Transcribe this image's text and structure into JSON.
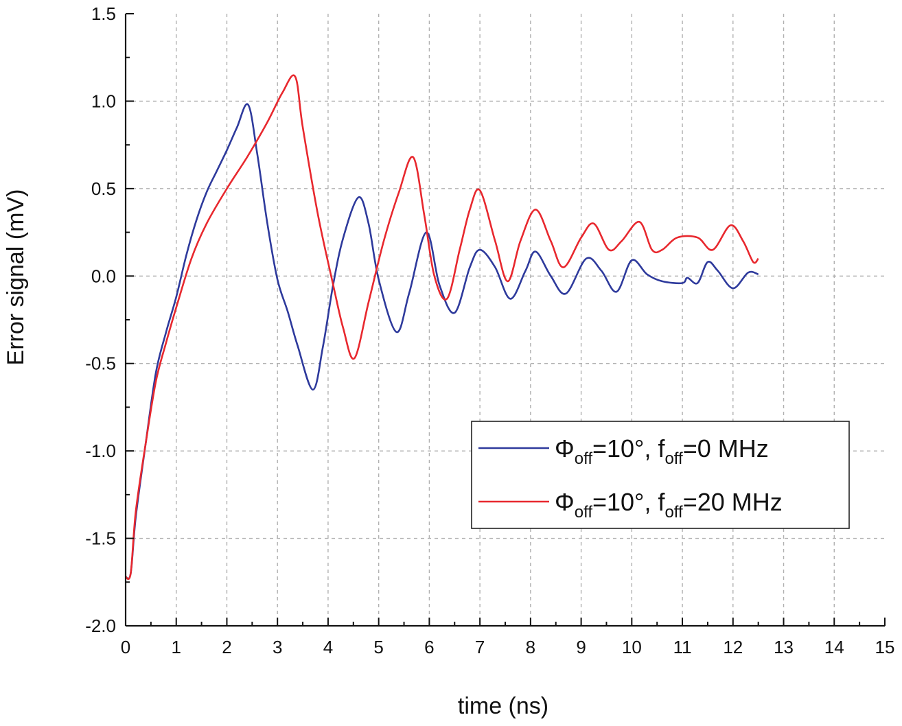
{
  "chart_data": {
    "type": "line",
    "title": "",
    "xlabel": "time (ns)",
    "ylabel": "Error signal (mV)",
    "xlim": [
      0,
      15
    ],
    "ylim": [
      -2.0,
      1.5
    ],
    "grid": true,
    "legend_position": "right-middle",
    "x_ticks": [
      "0",
      "1",
      "2",
      "3",
      "4",
      "5",
      "6",
      "7",
      "8",
      "9",
      "10",
      "11",
      "12",
      "13",
      "14",
      "15"
    ],
    "y_ticks": [
      "-2.0",
      "-1.5",
      "-1.0",
      "-0.5",
      "0.0",
      "0.5",
      "1.0",
      "1.5"
    ],
    "series": [
      {
        "name": "Φoff=10°, foff=0 MHz",
        "legend": {
          "symbol": "Φ",
          "sub1": "off",
          "mid": "=10°, f",
          "sub2": "off",
          "tail": "=0 MHz"
        },
        "color": "#2e3a9c",
        "x": [
          0,
          0.1,
          0.2,
          0.4,
          0.6,
          0.8,
          1.0,
          1.2,
          1.4,
          1.6,
          1.8,
          2.0,
          2.2,
          2.42,
          2.6,
          2.8,
          3.0,
          3.2,
          3.4,
          3.7,
          3.9,
          4.1,
          4.3,
          4.6,
          4.8,
          5.0,
          5.35,
          5.6,
          5.94,
          6.2,
          6.5,
          6.8,
          7.0,
          7.3,
          7.6,
          7.9,
          8.1,
          8.4,
          8.7,
          9.1,
          9.4,
          9.7,
          10.0,
          10.3,
          10.6,
          11.0,
          11.1,
          11.3,
          11.5,
          11.7,
          12.0,
          12.3,
          12.5
        ],
        "y": [
          -1.72,
          -1.7,
          -1.38,
          -0.95,
          -0.55,
          -0.32,
          -0.12,
          0.12,
          0.32,
          0.48,
          0.6,
          0.72,
          0.85,
          0.98,
          0.7,
          0.3,
          -0.02,
          -0.2,
          -0.4,
          -0.65,
          -0.4,
          -0.05,
          0.22,
          0.45,
          0.3,
          -0.02,
          -0.32,
          -0.1,
          0.25,
          -0.05,
          -0.21,
          0.05,
          0.15,
          0.05,
          -0.13,
          0.03,
          0.14,
          0.0,
          -0.1,
          0.1,
          0.03,
          -0.09,
          0.09,
          0.01,
          -0.03,
          -0.04,
          -0.01,
          -0.04,
          0.08,
          0.03,
          -0.07,
          0.02,
          0.01
        ]
      },
      {
        "name": "Φoff=10°, foff=20 MHz",
        "legend": {
          "symbol": "Φ",
          "sub1": "off",
          "mid": "=10°, f",
          "sub2": "off",
          "tail": "=20 MHz"
        },
        "color": "#e8282e",
        "x": [
          0,
          0.1,
          0.2,
          0.4,
          0.6,
          0.8,
          1.0,
          1.3,
          1.6,
          2.0,
          2.4,
          2.8,
          3.1,
          3.35,
          3.5,
          3.8,
          4.1,
          4.3,
          4.52,
          4.8,
          5.1,
          5.4,
          5.68,
          5.9,
          6.1,
          6.35,
          6.6,
          6.8,
          7.0,
          7.3,
          7.55,
          7.8,
          8.1,
          8.4,
          8.65,
          9.0,
          9.25,
          9.55,
          9.8,
          10.15,
          10.4,
          10.6,
          10.9,
          11.3,
          11.6,
          11.95,
          12.2,
          12.4,
          12.5
        ],
        "y": [
          -1.72,
          -1.7,
          -1.35,
          -0.95,
          -0.6,
          -0.38,
          -0.18,
          0.1,
          0.3,
          0.5,
          0.68,
          0.88,
          1.05,
          1.14,
          0.85,
          0.35,
          -0.05,
          -0.3,
          -0.47,
          -0.15,
          0.2,
          0.48,
          0.68,
          0.35,
          0.0,
          -0.13,
          0.15,
          0.38,
          0.49,
          0.2,
          -0.03,
          0.2,
          0.38,
          0.2,
          0.05,
          0.22,
          0.3,
          0.15,
          0.2,
          0.31,
          0.15,
          0.15,
          0.22,
          0.22,
          0.15,
          0.29,
          0.2,
          0.08,
          0.1
        ]
      }
    ]
  }
}
